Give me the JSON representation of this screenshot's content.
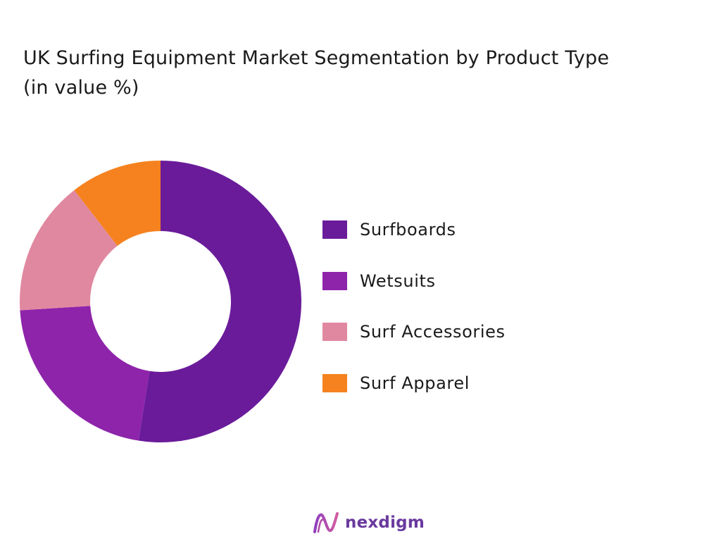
{
  "title_line1": "UK Surfing Equipment  Market Segmentation by Product Type",
  "title_line2": "(in value %)",
  "brand": {
    "name": "nexdigm",
    "logo_icon": "nexdigm-logo-icon",
    "color": "#6a3a9e"
  },
  "chart_data": {
    "type": "pie",
    "variant": "donut",
    "title": "UK Surfing Equipment  Market Segmentation by Product Type (in value %)",
    "legend_position": "right",
    "slices": [
      {
        "label": "Surfboards",
        "value": 52.5,
        "color": "#6a1b9a"
      },
      {
        "label": "Wetsuits",
        "value": 21.5,
        "color": "#8e24aa"
      },
      {
        "label": "Surf Accessories",
        "value": 15.5,
        "color": "#e088a0"
      },
      {
        "label": "Surf Apparel",
        "value": 10.5,
        "color": "#f5821f"
      }
    ]
  }
}
